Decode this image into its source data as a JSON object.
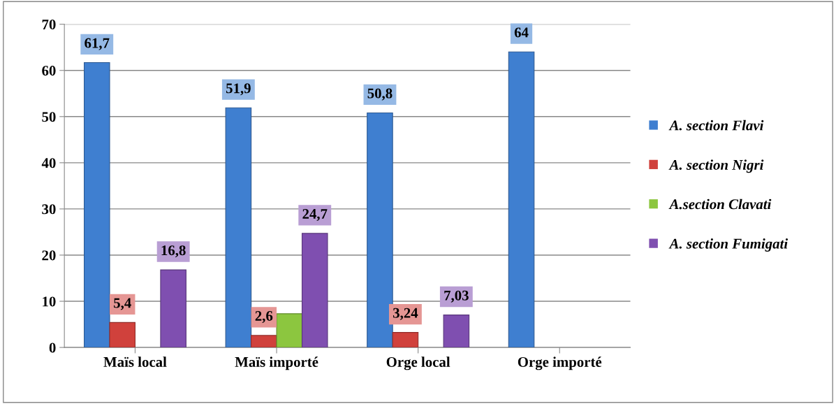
{
  "chart_data": {
    "type": "bar",
    "categories": [
      "Maïs local",
      "Maïs importé",
      "Orge local",
      "Orge importé"
    ],
    "series": [
      {
        "name": "A. section Flavi",
        "color": "#3f7fd0",
        "values": [
          61.7,
          51.9,
          50.8,
          64
        ],
        "value_labels": [
          "61,7",
          "51,9",
          "50,8",
          "64"
        ]
      },
      {
        "name": "A. section Nigri",
        "color": "#d0413c",
        "values": [
          5.4,
          2.6,
          3.24,
          null
        ],
        "value_labels": [
          "5,4",
          "2,6",
          "3,24",
          null
        ]
      },
      {
        "name": "A.section Clavati",
        "color": "#8cc63f",
        "values": [
          null,
          7.3,
          null,
          null
        ],
        "value_labels": [
          null,
          null,
          null,
          null
        ]
      },
      {
        "name": "A. section Fumigati",
        "color": "#7f4fb0",
        "values": [
          16.8,
          24.7,
          7.03,
          null
        ],
        "value_labels": [
          "16,8",
          "24,7",
          "7,03",
          null
        ]
      }
    ],
    "ylim": [
      0,
      70
    ],
    "yticks": [
      0,
      10,
      20,
      30,
      40,
      50,
      60,
      70
    ],
    "grid": "y",
    "legend": "right"
  }
}
